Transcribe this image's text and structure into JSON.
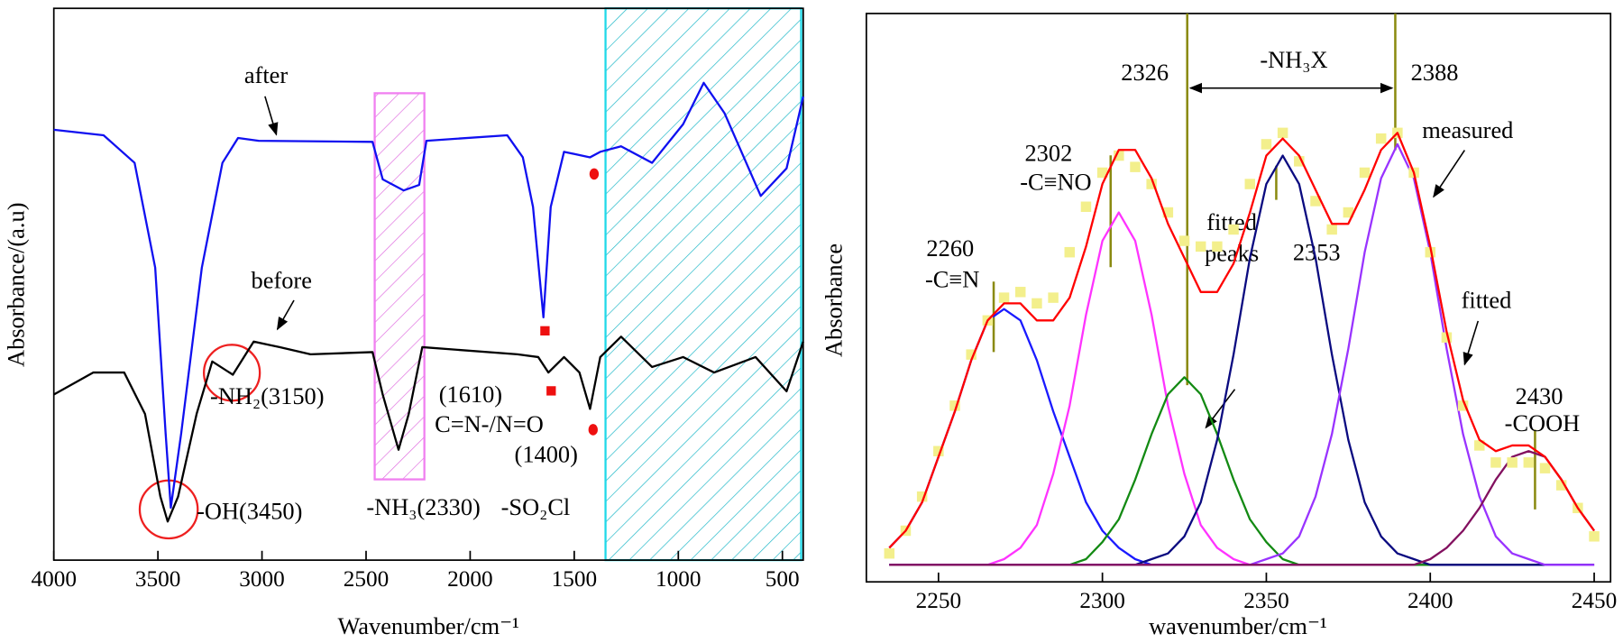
{
  "chart_data": [
    {
      "type": "line",
      "xlabel": "Wavenumber/cm⁻¹",
      "ylabel": "Absorbance/(a.u)",
      "xlim": [
        4000,
        400
      ],
      "ylim": [
        0,
        1
      ],
      "xticks": [
        4000,
        3500,
        3000,
        2500,
        2000,
        1500,
        1000,
        500
      ],
      "series": [
        {
          "name": "after",
          "color": "#1010f0",
          "x": [
            4000,
            3761,
            3612,
            3513,
            3463,
            3438,
            3388,
            3289,
            3190,
            3115,
            3016,
            2469,
            2420,
            2320,
            2245,
            2210,
            1822,
            1747,
            1698,
            1648,
            1613,
            1549,
            1424,
            1375,
            1275,
            1126,
            977,
            878,
            778,
            604,
            480,
            400
          ],
          "values": [
            0.78,
            0.77,
            0.72,
            0.53,
            0.23,
            0.095,
            0.23,
            0.53,
            0.72,
            0.765,
            0.76,
            0.758,
            0.69,
            0.67,
            0.68,
            0.76,
            0.77,
            0.73,
            0.64,
            0.44,
            0.64,
            0.74,
            0.73,
            0.74,
            0.75,
            0.72,
            0.79,
            0.865,
            0.81,
            0.66,
            0.71,
            0.84
          ]
        },
        {
          "name": "before",
          "color": "#000000",
          "x": [
            4000,
            3811,
            3662,
            3562,
            3488,
            3453,
            3403,
            3314,
            3239,
            3140,
            3040,
            2916,
            2767,
            2469,
            2420,
            2344,
            2295,
            2230,
            1773,
            1673,
            1624,
            1549,
            1475,
            1424,
            1375,
            1275,
            1126,
            977,
            828,
            629,
            480,
            400
          ],
          "values": [
            0.3,
            0.34,
            0.34,
            0.265,
            0.115,
            0.07,
            0.115,
            0.265,
            0.36,
            0.336,
            0.396,
            0.386,
            0.373,
            0.377,
            0.3,
            0.2,
            0.265,
            0.386,
            0.373,
            0.368,
            0.34,
            0.368,
            0.34,
            0.274,
            0.368,
            0.405,
            0.35,
            0.368,
            0.34,
            0.368,
            0.306,
            0.396
          ]
        }
      ],
      "annotations": [
        "-NH₂(3150)",
        "-OH(3450)",
        "-NH₃(2330)",
        "(1610)",
        "C=N-/N=O",
        "(1400)",
        "-SO₂Cl"
      ]
    },
    {
      "type": "line",
      "xlabel": "wavenumber/cm⁻¹",
      "ylabel": "Absorbance",
      "xlim": [
        2228,
        2455
      ],
      "ylim": [
        0,
        1
      ],
      "xticks": [
        2250,
        2300,
        2350,
        2400,
        2450
      ],
      "x": [
        2235,
        2240,
        2245,
        2250,
        2255,
        2260,
        2265,
        2270,
        2275,
        2280,
        2285,
        2290,
        2295,
        2300,
        2305,
        2310,
        2315,
        2320,
        2325,
        2330,
        2335,
        2340,
        2345,
        2350,
        2355,
        2360,
        2365,
        2370,
        2375,
        2380,
        2385,
        2390,
        2395,
        2400,
        2405,
        2410,
        2415,
        2420,
        2425,
        2430,
        2435,
        2440,
        2445,
        2450
      ],
      "series": [
        {
          "color": "#1a1aff",
          "values": [
            0.06,
            0.09,
            0.14,
            0.22,
            0.3,
            0.39,
            0.46,
            0.48,
            0.46,
            0.39,
            0.3,
            0.22,
            0.14,
            0.09,
            0.06,
            0.04,
            0.03,
            0.03,
            0.03,
            0.03,
            0.03,
            0.03,
            0.03,
            0.03,
            0.03,
            0.03,
            0.03,
            0.03,
            0.03,
            0.03,
            0.03,
            0.03,
            0.03,
            0.03,
            0.03,
            0.03,
            0.03,
            0.03,
            0.03,
            0.03,
            0.03,
            0.03,
            0.03,
            0.03
          ]
        },
        {
          "color": "#ff33ff",
          "values": [
            0.03,
            0.03,
            0.03,
            0.03,
            0.03,
            0.03,
            0.03,
            0.04,
            0.06,
            0.1,
            0.19,
            0.31,
            0.47,
            0.6,
            0.65,
            0.6,
            0.47,
            0.31,
            0.19,
            0.1,
            0.06,
            0.04,
            0.03,
            0.03,
            0.03,
            0.03,
            0.03,
            0.03,
            0.03,
            0.03,
            0.03,
            0.03,
            0.03,
            0.03,
            0.03,
            0.03,
            0.03,
            0.03,
            0.03,
            0.03,
            0.03,
            0.03,
            0.03,
            0.03
          ]
        },
        {
          "color": "#138a13",
          "values": [
            0.03,
            0.03,
            0.03,
            0.03,
            0.03,
            0.03,
            0.03,
            0.03,
            0.03,
            0.03,
            0.03,
            0.03,
            0.04,
            0.07,
            0.11,
            0.18,
            0.26,
            0.33,
            0.36,
            0.33,
            0.26,
            0.18,
            0.11,
            0.07,
            0.04,
            0.03,
            0.03,
            0.03,
            0.03,
            0.03,
            0.03,
            0.03,
            0.03,
            0.03,
            0.03,
            0.03,
            0.03,
            0.03,
            0.03,
            0.03,
            0.03,
            0.03,
            0.03,
            0.03
          ]
        },
        {
          "color": "#0a0a80",
          "values": [
            0.03,
            0.03,
            0.03,
            0.03,
            0.03,
            0.03,
            0.03,
            0.03,
            0.03,
            0.03,
            0.03,
            0.03,
            0.03,
            0.03,
            0.03,
            0.03,
            0.04,
            0.05,
            0.08,
            0.14,
            0.25,
            0.4,
            0.57,
            0.7,
            0.75,
            0.7,
            0.57,
            0.4,
            0.25,
            0.14,
            0.08,
            0.05,
            0.04,
            0.03,
            0.03,
            0.03,
            0.03,
            0.03,
            0.03,
            0.03,
            0.03,
            0.03,
            0.03,
            0.03
          ]
        },
        {
          "color": "#9933ff",
          "values": [
            0.03,
            0.03,
            0.03,
            0.03,
            0.03,
            0.03,
            0.03,
            0.03,
            0.03,
            0.03,
            0.03,
            0.03,
            0.03,
            0.03,
            0.03,
            0.03,
            0.03,
            0.03,
            0.03,
            0.03,
            0.03,
            0.03,
            0.03,
            0.04,
            0.05,
            0.08,
            0.15,
            0.26,
            0.41,
            0.58,
            0.71,
            0.77,
            0.71,
            0.58,
            0.41,
            0.26,
            0.15,
            0.08,
            0.05,
            0.04,
            0.03,
            0.03,
            0.03,
            0.03
          ]
        },
        {
          "color": "#82105f",
          "values": [
            0.03,
            0.03,
            0.03,
            0.03,
            0.03,
            0.03,
            0.03,
            0.03,
            0.03,
            0.03,
            0.03,
            0.03,
            0.03,
            0.03,
            0.03,
            0.03,
            0.03,
            0.03,
            0.03,
            0.03,
            0.03,
            0.03,
            0.03,
            0.03,
            0.03,
            0.03,
            0.03,
            0.03,
            0.03,
            0.03,
            0.03,
            0.03,
            0.03,
            0.04,
            0.06,
            0.09,
            0.13,
            0.18,
            0.22,
            0.23,
            0.22,
            0.18,
            0.13,
            0.09
          ]
        },
        {
          "name": "measured",
          "color": "#f3ef8c",
          "marker": "square",
          "values": [
            0.05,
            0.09,
            0.15,
            0.23,
            0.31,
            0.4,
            0.46,
            0.5,
            0.51,
            0.49,
            0.5,
            0.58,
            0.66,
            0.72,
            0.75,
            0.73,
            0.7,
            0.65,
            0.6,
            0.59,
            0.59,
            0.62,
            0.7,
            0.77,
            0.79,
            0.74,
            0.67,
            0.62,
            0.65,
            0.72,
            0.78,
            0.79,
            0.72,
            0.58,
            0.43,
            0.31,
            0.24,
            0.21,
            0.21,
            0.21,
            0.2,
            0.17,
            0.13,
            0.08
          ]
        },
        {
          "name": "fitted",
          "color": "#ff0000",
          "values": [
            0.06,
            0.09,
            0.14,
            0.22,
            0.3,
            0.39,
            0.46,
            0.49,
            0.49,
            0.46,
            0.46,
            0.5,
            0.59,
            0.7,
            0.76,
            0.76,
            0.71,
            0.63,
            0.57,
            0.51,
            0.51,
            0.56,
            0.65,
            0.75,
            0.78,
            0.75,
            0.69,
            0.63,
            0.63,
            0.69,
            0.76,
            0.79,
            0.72,
            0.59,
            0.44,
            0.32,
            0.25,
            0.23,
            0.24,
            0.24,
            0.22,
            0.18,
            0.13,
            0.09
          ]
        }
      ],
      "annotations": [
        "2260",
        "-C≡N",
        "2302",
        "-C≡NO",
        "2326",
        "2388",
        "-NH₃X",
        "2353",
        "fitted peaks",
        "2430",
        "-COOH"
      ]
    }
  ]
}
